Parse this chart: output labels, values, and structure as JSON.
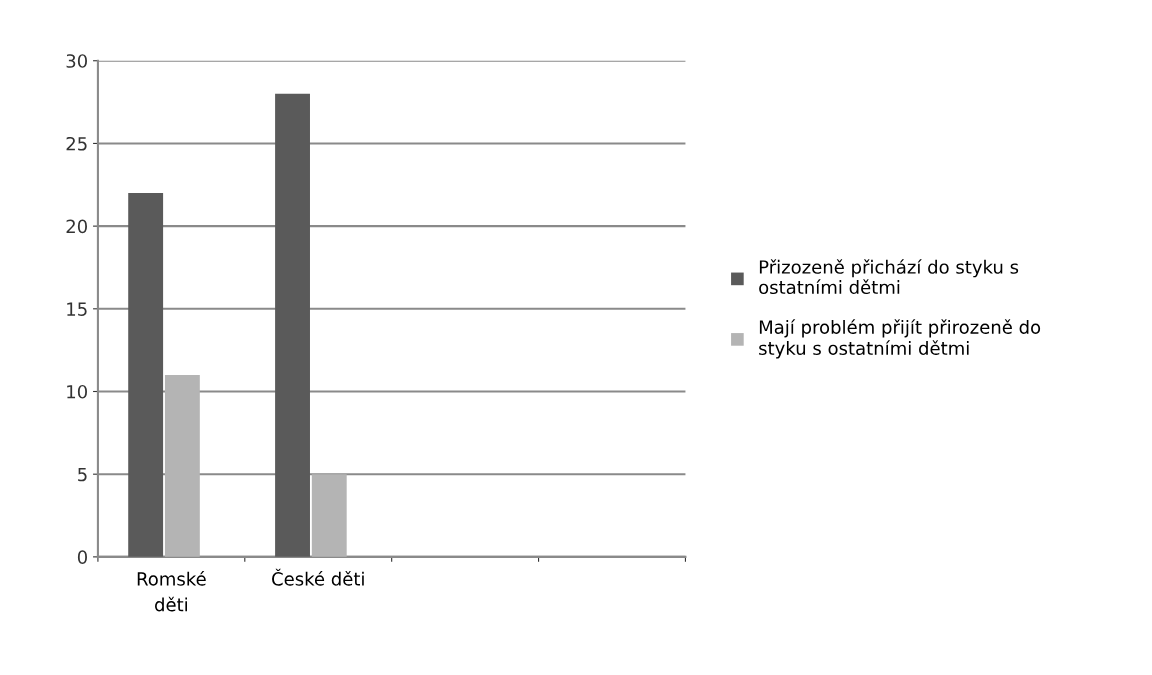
{
  "chart_data": {
    "type": "bar",
    "categories": [
      "Romské\nděti",
      "České děti",
      null,
      null
    ],
    "series": [
      {
        "name": "Přizozeně přichází do styku s\nostatními dětmi",
        "color": "#5a5a5a",
        "values": [
          22,
          28,
          null,
          null
        ]
      },
      {
        "name": "Mají problém přijít přirozeně do\nstyku s ostatními dětmi",
        "color": "#b4b4b4",
        "values": [
          11,
          5,
          null,
          null
        ]
      }
    ],
    "ylim": [
      0,
      30
    ],
    "yticks": [
      0,
      5,
      10,
      15,
      20,
      25,
      30
    ],
    "grid": "y",
    "legend": "right"
  }
}
